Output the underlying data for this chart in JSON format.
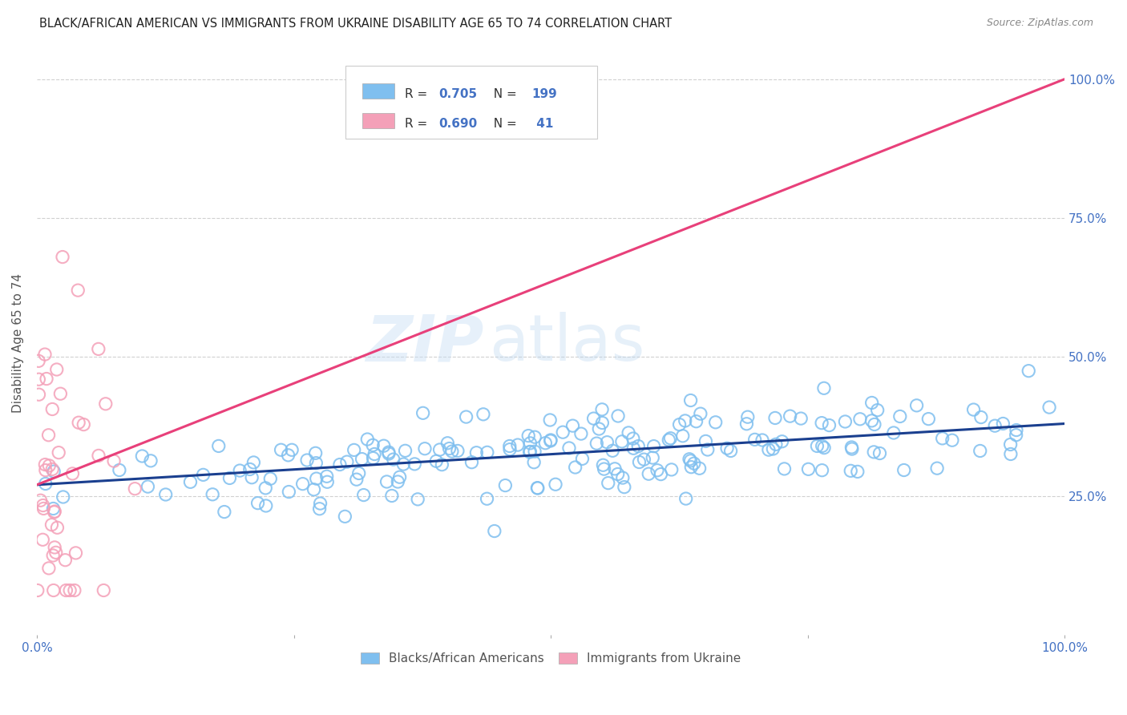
{
  "title": "BLACK/AFRICAN AMERICAN VS IMMIGRANTS FROM UKRAINE DISABILITY AGE 65 TO 74 CORRELATION CHART",
  "source": "Source: ZipAtlas.com",
  "ylabel": "Disability Age 65 to 74",
  "ytick_labels": [
    "25.0%",
    "50.0%",
    "75.0%",
    "100.0%"
  ],
  "ytick_positions": [
    0.25,
    0.5,
    0.75,
    1.0
  ],
  "legend_label_blue": "Blacks/African Americans",
  "legend_label_pink": "Immigrants from Ukraine",
  "R_blue": "0.705",
  "N_blue": "199",
  "R_pink": "0.690",
  "N_pink": "41",
  "blue_color": "#7fbfef",
  "pink_color": "#f4a0b8",
  "blue_line_color": "#1a3f8f",
  "pink_line_color": "#e8407a",
  "watermark_zip": "ZIP",
  "watermark_atlas": "atlas",
  "background_color": "#ffffff",
  "grid_color": "#cccccc",
  "title_color": "#222222",
  "axis_label_color": "#4472c4",
  "blue_scatter_seed": 42,
  "pink_scatter_seed": 7,
  "xlim": [
    0.0,
    1.0
  ],
  "ylim": [
    0.0,
    1.05
  ],
  "blue_line_x0": 0.0,
  "blue_line_y0": 0.27,
  "blue_line_x1": 1.0,
  "blue_line_y1": 0.38,
  "pink_line_x0": 0.0,
  "pink_line_y0": 0.27,
  "pink_line_x1": 1.0,
  "pink_line_y1": 1.0
}
